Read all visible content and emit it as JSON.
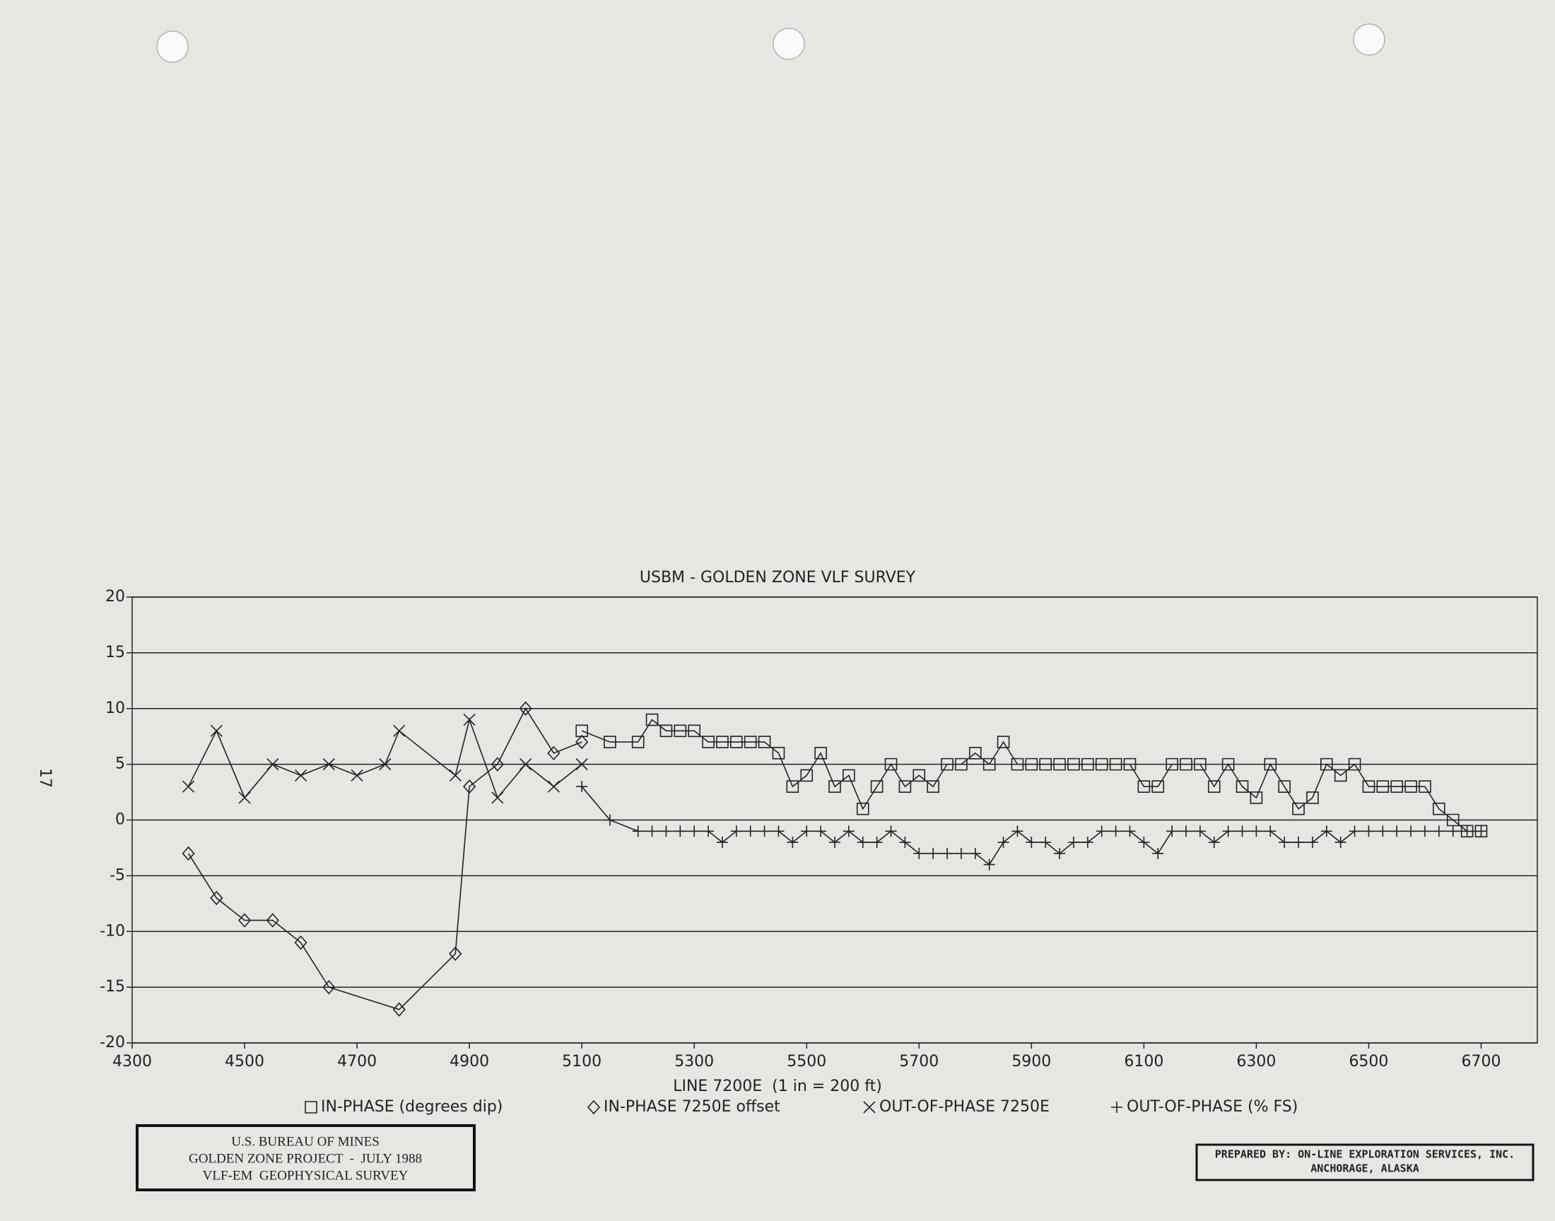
{
  "chart_data": {
    "type": "line",
    "title": "USBM - GOLDEN ZONE VLF SURVEY",
    "x_label": "LINE 7200E  (1 in = 200 ft)",
    "xlim": [
      4300,
      6800
    ],
    "xticks": [
      4300,
      4500,
      4700,
      4900,
      5100,
      5300,
      5500,
      5700,
      5900,
      6100,
      6300,
      6500,
      6700
    ],
    "ylim": [
      -20,
      20
    ],
    "yticks": [
      20,
      15,
      10,
      5,
      0,
      -5,
      -10,
      -15,
      -20
    ],
    "grid": true,
    "series": [
      {
        "name": "IN-PHASE (degrees dip)",
        "marker": "square",
        "color": "#222222",
        "x": [
          5100,
          5150,
          5200,
          5225,
          5250,
          5275,
          5300,
          5325,
          5350,
          5375,
          5400,
          5425,
          5450,
          5475,
          5500,
          5525,
          5550,
          5575,
          5600,
          5625,
          5650,
          5675,
          5700,
          5725,
          5750,
          5775,
          5800,
          5825,
          5850,
          5875,
          5900,
          5925,
          5950,
          5975,
          6000,
          6025,
          6050,
          6075,
          6100,
          6125,
          6150,
          6175,
          6200,
          6225,
          6250,
          6275,
          6300,
          6325,
          6350,
          6375,
          6400,
          6425,
          6450,
          6475,
          6500,
          6525,
          6550,
          6575,
          6600,
          6625,
          6650,
          6675,
          6700
        ],
        "values": [
          8,
          7,
          7,
          9,
          8,
          8,
          8,
          7,
          7,
          7,
          7,
          7,
          6,
          3,
          4,
          6,
          3,
          4,
          1,
          3,
          5,
          3,
          4,
          3,
          5,
          5,
          6,
          5,
          7,
          5,
          5,
          5,
          5,
          5,
          5,
          5,
          5,
          5,
          3,
          3,
          5,
          5,
          5,
          3,
          5,
          3,
          2,
          5,
          3,
          1,
          2,
          5,
          4,
          5,
          3,
          3,
          3,
          3,
          3,
          1,
          0,
          -1,
          -1
        ]
      },
      {
        "name": "IN-PHASE 7250E offset",
        "marker": "diamond",
        "color": "#222222",
        "x": [
          4400,
          4450,
          4500,
          4550,
          4600,
          4650,
          4775,
          4875,
          4900,
          4950,
          5000,
          5050,
          5100
        ],
        "values": [
          -3,
          -7,
          -9,
          -9,
          -11,
          -15,
          -17,
          -12,
          3,
          5,
          10,
          6,
          7
        ]
      },
      {
        "name": "OUT-OF-PHASE 7250E",
        "marker": "x",
        "color": "#222222",
        "x": [
          4400,
          4450,
          4500,
          4550,
          4600,
          4650,
          4700,
          4750,
          4775,
          4875,
          4900,
          4950,
          5000,
          5050,
          5100
        ],
        "values": [
          3,
          8,
          2,
          5,
          4,
          5,
          4,
          5,
          8,
          4,
          9,
          2,
          5,
          3,
          5
        ]
      },
      {
        "name": "OUT-OF-PHASE (% FS)",
        "marker": "plus",
        "color": "#222222",
        "x": [
          5100,
          5150,
          5200,
          5225,
          5250,
          5275,
          5300,
          5325,
          5350,
          5375,
          5400,
          5425,
          5450,
          5475,
          5500,
          5525,
          5550,
          5575,
          5600,
          5625,
          5650,
          5675,
          5700,
          5725,
          5750,
          5775,
          5800,
          5825,
          5850,
          5875,
          5900,
          5925,
          5950,
          5975,
          6000,
          6025,
          6050,
          6075,
          6100,
          6125,
          6150,
          6175,
          6200,
          6225,
          6250,
          6275,
          6300,
          6325,
          6350,
          6375,
          6400,
          6425,
          6450,
          6475,
          6500,
          6525,
          6550,
          6575,
          6600,
          6625,
          6650,
          6675,
          6700
        ],
        "values": [
          3,
          0,
          -1,
          -1,
          -1,
          -1,
          -1,
          -1,
          -2,
          -1,
          -1,
          -1,
          -1,
          -2,
          -1,
          -1,
          -2,
          -1,
          -2,
          -2,
          -1,
          -2,
          -3,
          -3,
          -3,
          -3,
          -3,
          -4,
          -2,
          -1,
          -2,
          -2,
          -3,
          -2,
          -2,
          -1,
          -1,
          -1,
          -2,
          -3,
          -1,
          -1,
          -1,
          -2,
          -1,
          -1,
          -1,
          -1,
          -2,
          -2,
          -2,
          -1,
          -2,
          -1,
          -1,
          -1,
          -1,
          -1,
          -1,
          -1,
          -1,
          -1,
          -1
        ]
      }
    ]
  },
  "page_number": "17",
  "footer": {
    "left": [
      "U.S. BUREAU OF MINES",
      "GOLDEN ZONE PROJECT  -  JULY 1988",
      "VLF-EM  GEOPHYSICAL SURVEY"
    ],
    "right": [
      "PREPARED BY: ON-LINE EXPLORATION SERVICES, INC.",
      "ANCHORAGE, ALASKA"
    ]
  }
}
